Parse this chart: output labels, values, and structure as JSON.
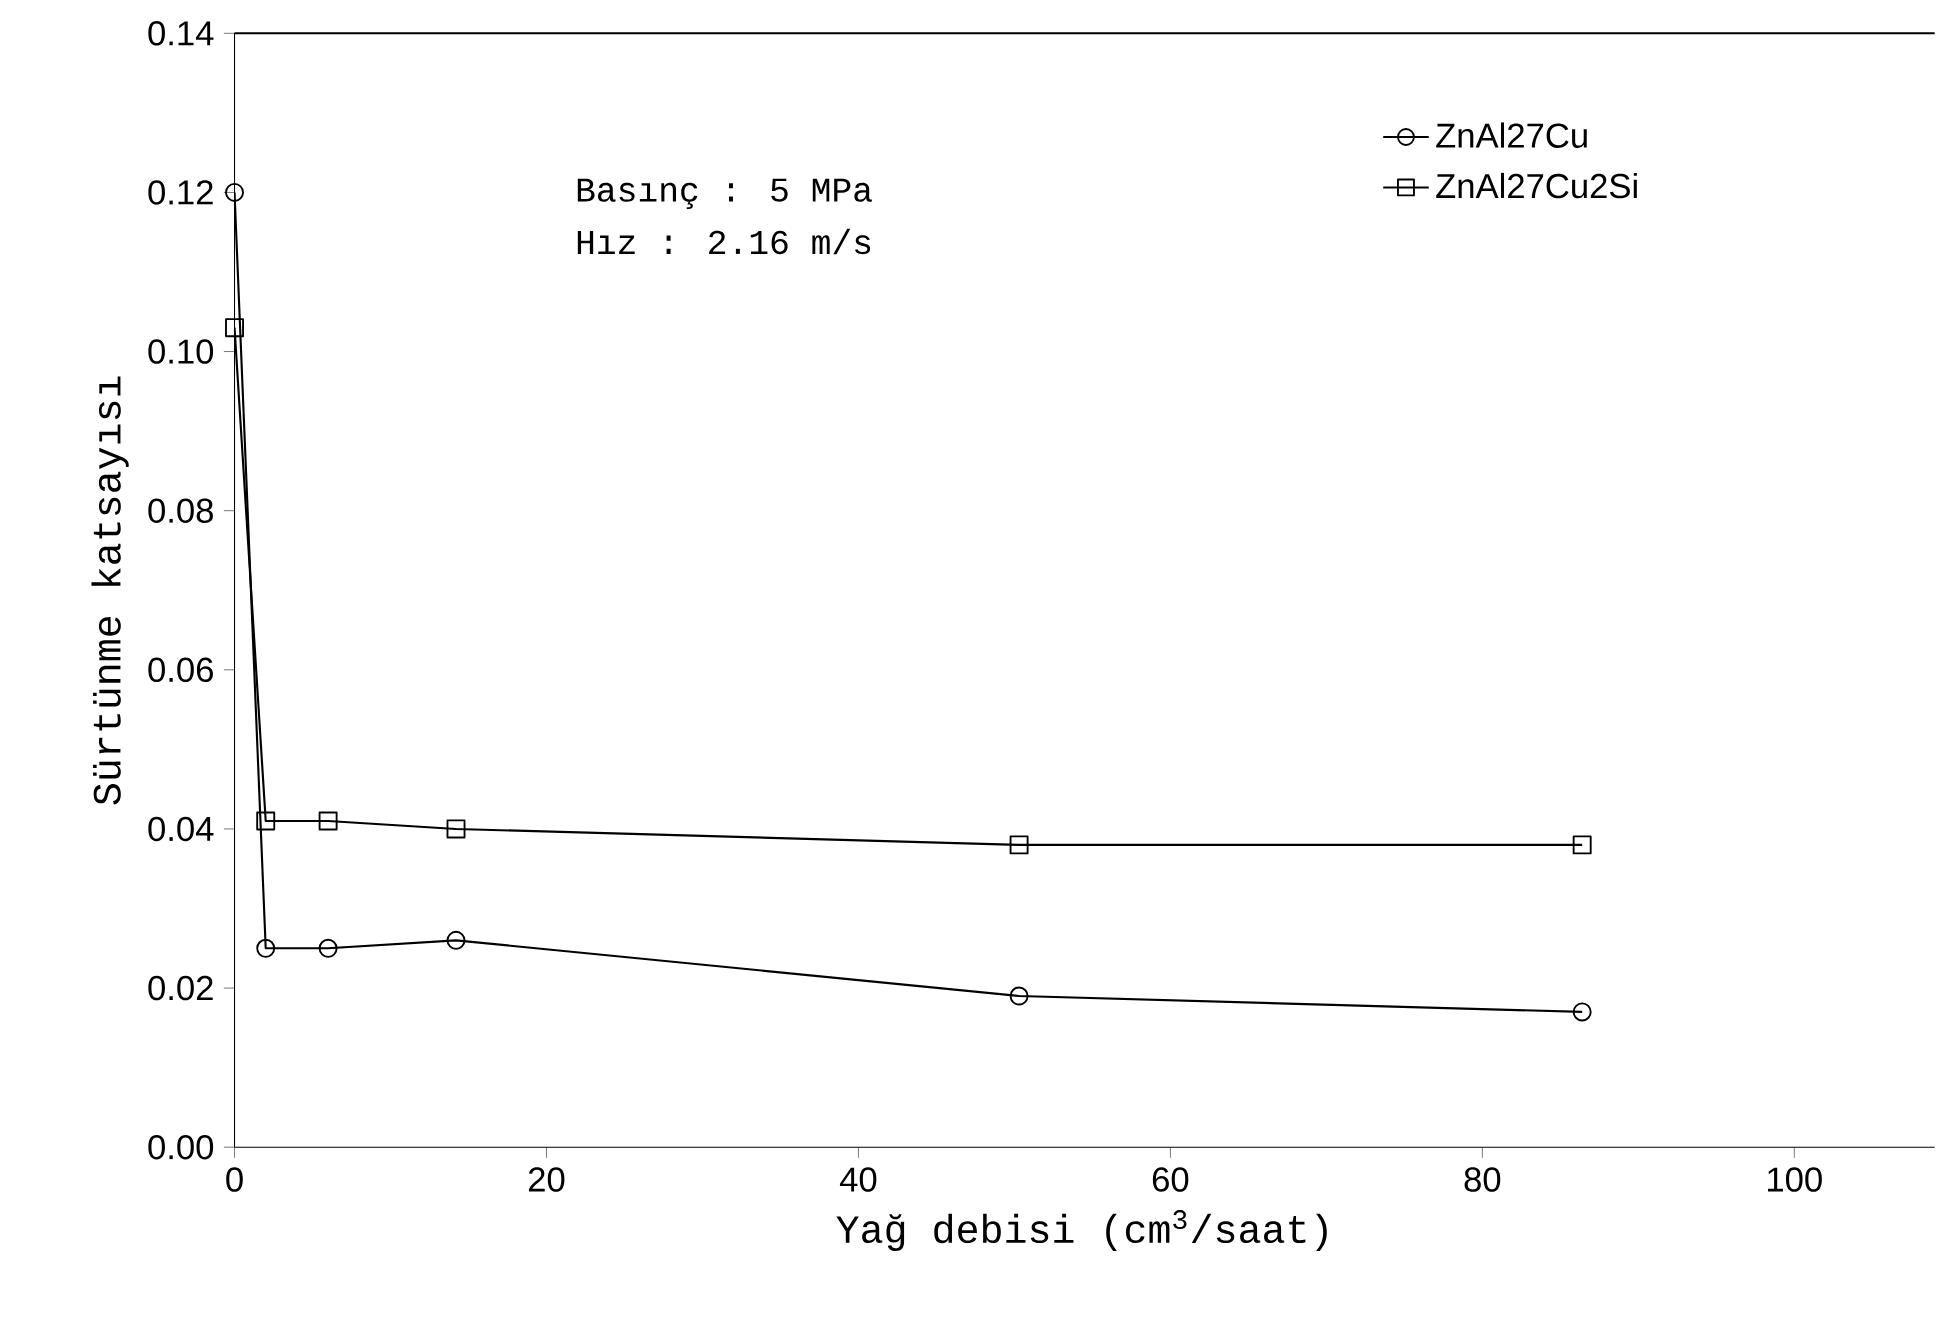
{
  "chart_data": {
    "type": "line",
    "xlabel": "Yağ debisi (cm$^{3}$/saat)",
    "ylabel": "Sürtünme katsayısı",
    "annotations": [
      "Basınç : 5 MPa",
      "Hız    :  2.16 m/s"
    ],
    "series": [
      {
        "name": "ZnAl27Cu",
        "color": "#000000",
        "marker": "circle",
        "x": [
          0,
          2,
          6,
          14.2,
          50.3,
          86.4
        ],
        "values": [
          0.12,
          0.025,
          0.025,
          0.026,
          0.019,
          0.017
        ]
      },
      {
        "name": "ZnAl27Cu2Si",
        "color": "#000000",
        "marker": "square",
        "x": [
          0,
          2,
          6,
          14.2,
          50.3,
          86.4
        ],
        "values": [
          0.103,
          0.041,
          0.041,
          0.04,
          0.038,
          0.038
        ]
      }
    ],
    "xlim": [
      0,
      109
    ],
    "ylim": [
      0,
      0.14
    ],
    "xticks": [
      0,
      20,
      40,
      60,
      80,
      100
    ],
    "yticks": [
      {
        "value": 0,
        "label": "0.00"
      },
      {
        "value": 0.02,
        "label": "0.02"
      },
      {
        "value": 0.04,
        "label": "0.04"
      },
      {
        "value": 0.06,
        "label": "0.06"
      },
      {
        "value": 0.08,
        "label": "0.08"
      },
      {
        "value": 0.1,
        "label": "0.10"
      },
      {
        "value": 0.12,
        "label": "0.12"
      },
      {
        "value": 0.14,
        "label": "0.14"
      }
    ],
    "legend": "top right",
    "grid": false,
    "line_style": "solid"
  }
}
